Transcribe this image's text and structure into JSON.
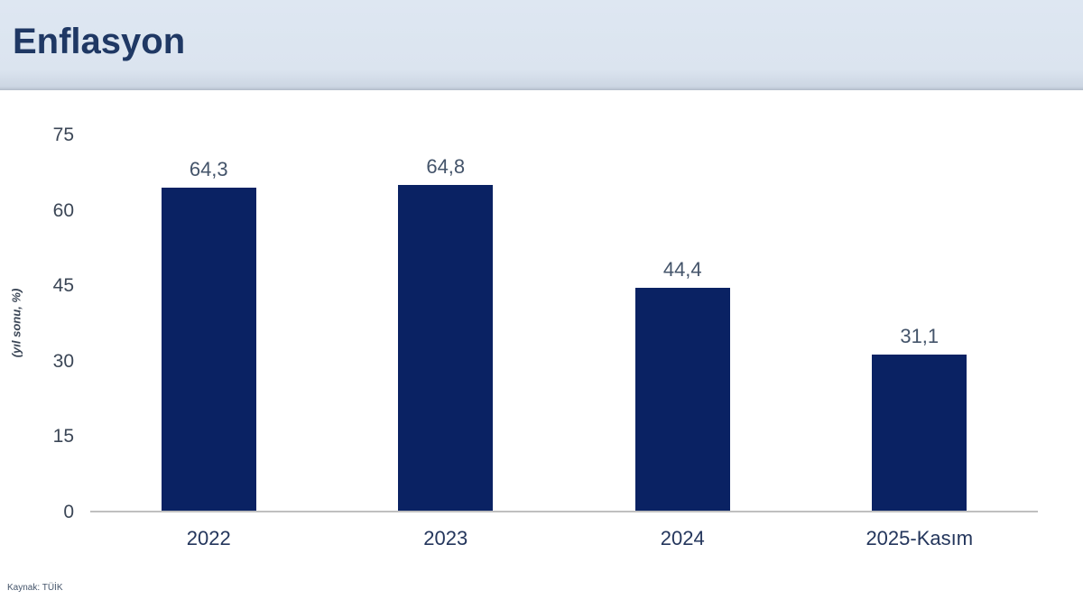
{
  "header": {
    "title": "Enflasyon"
  },
  "footer": {
    "source": "Kaynak: TÜİK"
  },
  "colors": {
    "bar": "#0a2263",
    "title": "#1f3864",
    "header_background": "#dbe4ef",
    "axis_line": "#bfbfbf",
    "data_label": "#44546a"
  },
  "chart_data": {
    "type": "bar",
    "title": "Enflasyon",
    "categories": [
      "2022",
      "2023",
      "2024",
      "2025-Kasım"
    ],
    "values": [
      64.3,
      64.8,
      44.4,
      31.1
    ],
    "value_labels": [
      "64,3",
      "64,8",
      "44,4",
      "31,1"
    ],
    "xlabel": "",
    "ylabel": "(yıl sonu, %)",
    "ylim": [
      0,
      75
    ],
    "yticks": [
      0,
      15,
      30,
      45,
      60,
      75
    ],
    "grid": false,
    "legend_position": "none",
    "annotation": "Kaynak: TÜİK"
  }
}
